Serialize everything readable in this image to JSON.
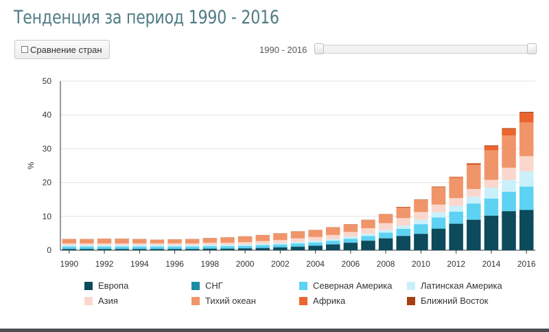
{
  "header": {
    "title": "Тенденция за период 1990 - 2016"
  },
  "controls": {
    "compare_label": "Сравнение стран",
    "range_label": "1990 - 2016"
  },
  "colors": {
    "europe": "#0c4a5c",
    "cis": "#1a8ca3",
    "north_america": "#5dd2f2",
    "latin_america": "#c9f0fb",
    "asia": "#fad7cc",
    "pacific": "#f0956a",
    "africa": "#eb6530",
    "middle_east": "#a43f12",
    "title": "#4f7c84"
  },
  "chart_data": {
    "type": "bar",
    "stacked": true,
    "ylabel": "%",
    "ylim": [
      0,
      50
    ],
    "yticks": [
      0,
      10,
      20,
      30,
      40,
      50
    ],
    "xtick_labels": [
      "1990",
      "1992",
      "1994",
      "1996",
      "1998",
      "2000",
      "2002",
      "2004",
      "2006",
      "2008",
      "2010",
      "2012",
      "2014",
      "2016"
    ],
    "grid": true,
    "legend": "bottom",
    "categories": [
      "1990",
      "1991",
      "1992",
      "1993",
      "1994",
      "1995",
      "1996",
      "1997",
      "1998",
      "1999",
      "2000",
      "2001",
      "2002",
      "2003",
      "2004",
      "2005",
      "2006",
      "2007",
      "2008",
      "2009",
      "2010",
      "2011",
      "2012",
      "2013",
      "2014",
      "2015",
      "2016"
    ],
    "series": [
      {
        "name": "Европа",
        "color": "#0c4a5c",
        "values": [
          0.3,
          0.3,
          0.3,
          0.3,
          0.3,
          0.3,
          0.3,
          0.3,
          0.4,
          0.4,
          0.5,
          0.6,
          0.8,
          1.0,
          1.3,
          1.7,
          2.2,
          2.8,
          3.5,
          4.2,
          4.8,
          6.3,
          7.8,
          9.0,
          10.2,
          11.5,
          11.8
        ]
      },
      {
        "name": "СНГ",
        "color": "#1a8ca3",
        "values": [
          0.1,
          0.1,
          0.1,
          0.1,
          0.1,
          0.1,
          0.1,
          0.1,
          0.1,
          0.1,
          0.1,
          0.1,
          0.1,
          0.1,
          0.1,
          0.1,
          0.1,
          0.1,
          0.1,
          0.1,
          0.1,
          0.1,
          0.1,
          0.1,
          0.1,
          0.1,
          0.2
        ]
      },
      {
        "name": "Северная Америка",
        "color": "#5dd2f2",
        "values": [
          0.7,
          0.7,
          0.7,
          0.7,
          0.7,
          0.7,
          0.7,
          0.7,
          0.7,
          0.7,
          0.7,
          0.8,
          0.8,
          0.9,
          0.9,
          1.0,
          1.1,
          1.3,
          1.6,
          2.0,
          2.8,
          3.3,
          3.5,
          4.7,
          5.0,
          5.7,
          6.8
        ]
      },
      {
        "name": "Латинская Америка",
        "color": "#c9f0fb",
        "values": [
          0.4,
          0.4,
          0.4,
          0.4,
          0.4,
          0.4,
          0.4,
          0.4,
          0.4,
          0.4,
          0.4,
          0.4,
          0.4,
          0.5,
          0.5,
          0.5,
          0.6,
          0.7,
          0.8,
          1.0,
          1.3,
          1.5,
          1.7,
          2.0,
          3.2,
          3.4,
          4.5
        ]
      },
      {
        "name": "Азия",
        "color": "#fad7cc",
        "values": [
          0.5,
          0.5,
          0.5,
          0.5,
          0.5,
          0.5,
          0.5,
          0.5,
          0.6,
          0.6,
          0.7,
          0.8,
          0.9,
          1.0,
          1.1,
          1.2,
          1.4,
          1.6,
          2.0,
          2.2,
          2.3,
          2.3,
          2.3,
          2.3,
          2.3,
          3.7,
          4.5
        ]
      },
      {
        "name": "Тихий океан",
        "color": "#f0956a",
        "values": [
          1.2,
          1.2,
          1.3,
          1.3,
          1.2,
          1.0,
          1.1,
          1.2,
          1.3,
          1.5,
          1.6,
          1.7,
          1.9,
          2.0,
          2.0,
          2.2,
          2.2,
          2.4,
          2.6,
          3.1,
          3.5,
          5.1,
          6.0,
          7.1,
          8.7,
          9.5,
          10.0
        ]
      },
      {
        "name": "Африка",
        "color": "#eb6530",
        "values": [
          0.05,
          0.05,
          0.05,
          0.05,
          0.05,
          0.05,
          0.05,
          0.05,
          0.05,
          0.05,
          0.05,
          0.05,
          0.05,
          0.05,
          0.05,
          0.05,
          0.05,
          0.05,
          0.05,
          0.1,
          0.1,
          0.1,
          0.2,
          0.3,
          1.3,
          2.0,
          2.8
        ]
      },
      {
        "name": "Ближний Восток",
        "color": "#a43f12",
        "values": [
          0.05,
          0.05,
          0.05,
          0.05,
          0.05,
          0.05,
          0.05,
          0.05,
          0.05,
          0.05,
          0.05,
          0.05,
          0.05,
          0.05,
          0.05,
          0.05,
          0.05,
          0.05,
          0.05,
          0.1,
          0.1,
          0.1,
          0.1,
          0.2,
          0.2,
          0.2,
          0.3
        ]
      }
    ]
  }
}
